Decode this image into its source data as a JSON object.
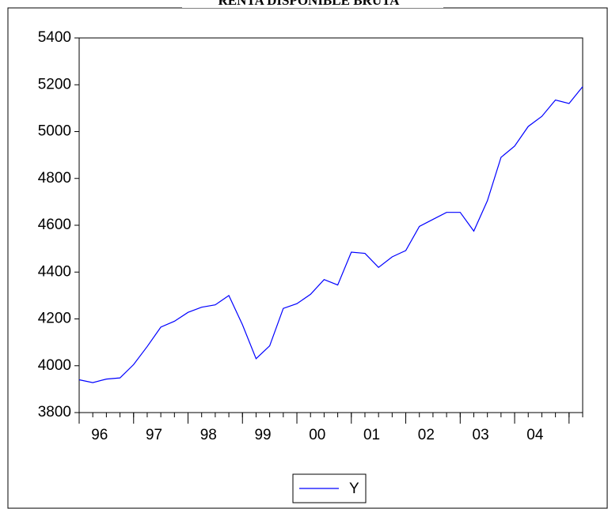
{
  "chart_data": {
    "type": "line",
    "title": "RENTA DISPONIBLE BRUTA",
    "categories": [
      null,
      "96",
      null,
      null,
      null,
      "97",
      null,
      null,
      null,
      "98",
      null,
      null,
      null,
      "99",
      null,
      null,
      null,
      "00",
      null,
      null,
      null,
      "01",
      null,
      null,
      null,
      "02",
      null,
      null,
      null,
      "03",
      null,
      null,
      null,
      "04",
      null,
      null,
      null,
      null
    ],
    "series": [
      {
        "name": "Y",
        "color": "#0000ff",
        "values": [
          3940,
          3928,
          3943,
          3948,
          4005,
          4082,
          4165,
          4190,
          4228,
          4250,
          4260,
          4300,
          4175,
          4030,
          4085,
          4245,
          4265,
          4305,
          4368,
          4345,
          4485,
          4480,
          4420,
          4465,
          4492,
          4595,
          4625,
          4655,
          4655,
          4575,
          4705,
          4890,
          4938,
          5022,
          5065,
          5135,
          5120,
          5192
        ]
      }
    ],
    "ylim": [
      3800,
      5400
    ],
    "yticks": [
      3800,
      4000,
      4200,
      4400,
      4600,
      4800,
      5000,
      5200,
      5400
    ]
  }
}
